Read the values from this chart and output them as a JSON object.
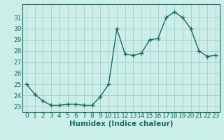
{
  "x": [
    0,
    1,
    2,
    3,
    4,
    5,
    6,
    7,
    8,
    9,
    10,
    11,
    12,
    13,
    14,
    15,
    16,
    17,
    18,
    19,
    20,
    21,
    22,
    23
  ],
  "y": [
    25.0,
    24.1,
    23.5,
    23.1,
    23.1,
    23.2,
    23.2,
    23.1,
    23.1,
    23.9,
    25.0,
    30.0,
    27.7,
    27.6,
    27.8,
    29.0,
    29.1,
    31.0,
    31.5,
    31.0,
    30.0,
    28.0,
    27.5,
    27.6
  ],
  "line_color": "#1a6b5a",
  "marker": "+",
  "marker_size": 4,
  "bg_color": "#cceee8",
  "grid_color": "#aad4ce",
  "xlabel": "Humidex (Indice chaleur)",
  "ylim": [
    22.5,
    32.2
  ],
  "yticks": [
    23,
    24,
    25,
    26,
    27,
    28,
    29,
    30,
    31
  ],
  "xlim": [
    -0.5,
    23.5
  ],
  "xticks": [
    0,
    1,
    2,
    3,
    4,
    5,
    6,
    7,
    8,
    9,
    10,
    11,
    12,
    13,
    14,
    15,
    16,
    17,
    18,
    19,
    20,
    21,
    22,
    23
  ],
  "font_color": "#1a6b5a",
  "tick_fontsize": 6.5,
  "xlabel_fontsize": 7.5,
  "linewidth": 1.0,
  "marker_linewidth": 1.0
}
